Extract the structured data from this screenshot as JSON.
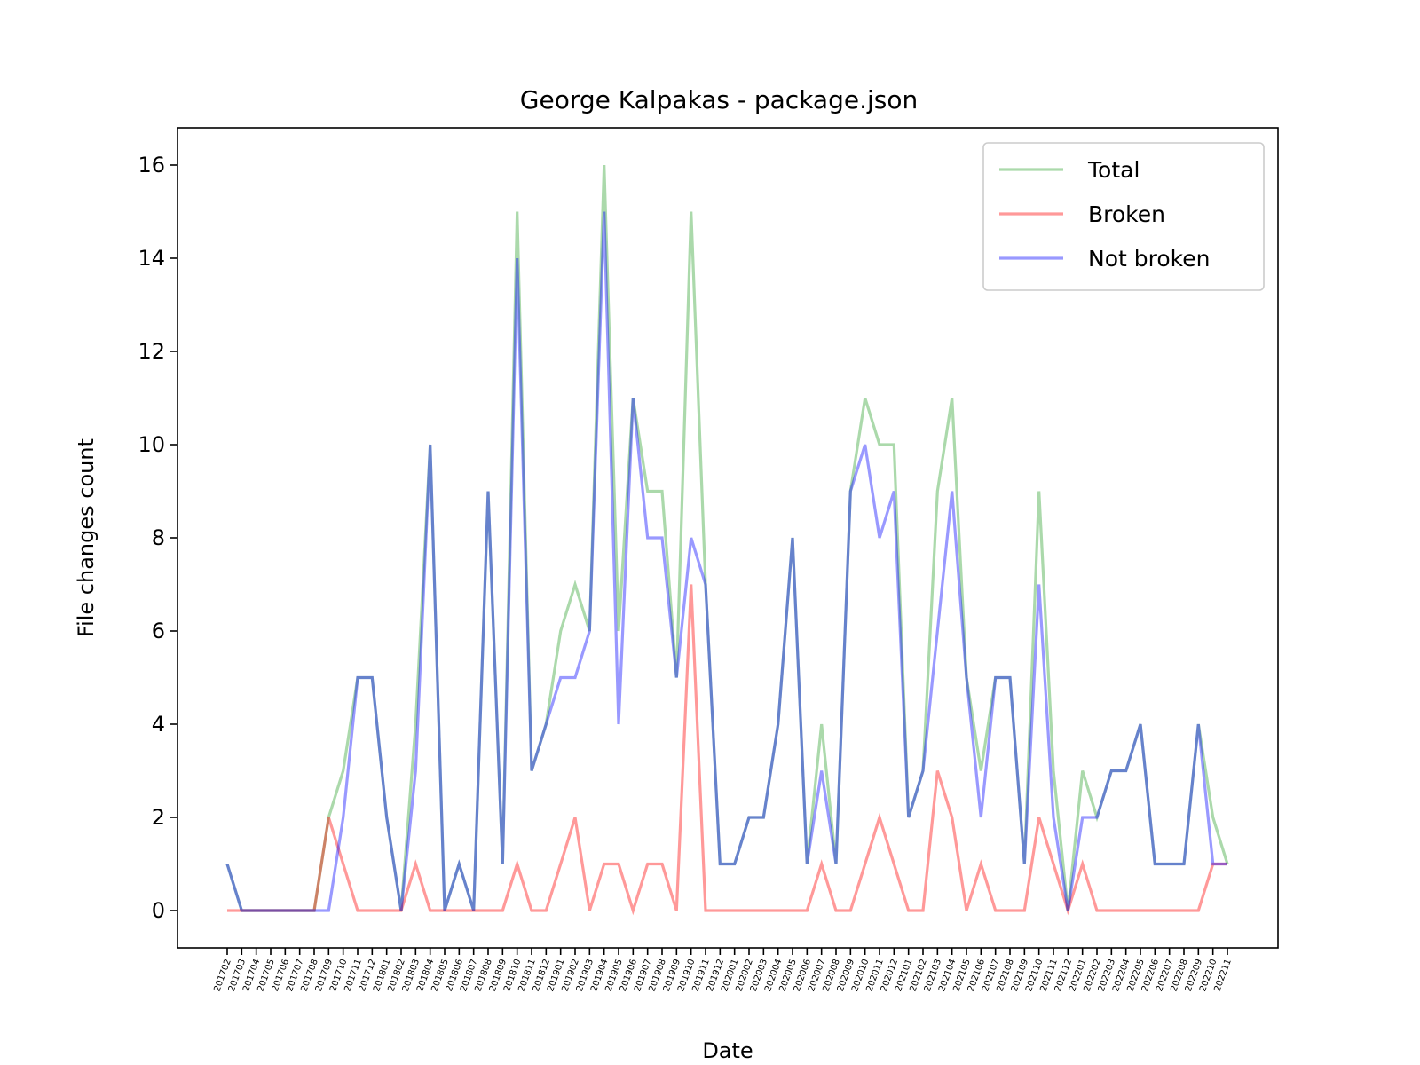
{
  "chart_data": {
    "type": "line",
    "title": "George Kalpakas - package.json",
    "xlabel": "Date",
    "ylabel": "File changes count",
    "ylim": [
      -0.8,
      16.8
    ],
    "yticks": [
      0,
      2,
      4,
      6,
      8,
      10,
      12,
      14,
      16
    ],
    "grid": false,
    "legend_position": "top-right",
    "categories": [
      "201702",
      "201703",
      "201704",
      "201705",
      "201706",
      "201707",
      "201708",
      "201709",
      "201710",
      "201711",
      "201712",
      "201801",
      "201802",
      "201803",
      "201804",
      "201805",
      "201806",
      "201807",
      "201808",
      "201809",
      "201810",
      "201811",
      "201812",
      "201901",
      "201902",
      "201903",
      "201904",
      "201905",
      "201906",
      "201907",
      "201908",
      "201909",
      "201910",
      "201911",
      "201912",
      "202001",
      "202002",
      "202003",
      "202004",
      "202005",
      "202006",
      "202007",
      "202008",
      "202009",
      "202010",
      "202011",
      "202012",
      "202101",
      "202102",
      "202103",
      "202104",
      "202105",
      "202106",
      "202107",
      "202108",
      "202109",
      "202110",
      "202111",
      "202112",
      "202201",
      "202202",
      "202203",
      "202204",
      "202205",
      "202206",
      "202207",
      "202208",
      "202209",
      "202210",
      "202211"
    ],
    "series": [
      {
        "name": "Total",
        "color": "#2ca02c",
        "values": [
          1,
          0,
          0,
          0,
          0,
          0,
          0,
          2,
          3,
          5,
          5,
          2,
          0,
          4,
          10,
          0,
          1,
          0,
          9,
          1,
          15,
          3,
          4,
          6,
          7,
          6,
          16,
          6,
          11,
          9,
          9,
          5,
          15,
          7,
          1,
          1,
          2,
          2,
          4,
          8,
          1,
          4,
          1,
          9,
          11,
          10,
          10,
          2,
          3,
          9,
          11,
          5,
          3,
          5,
          5,
          1,
          9,
          3,
          0,
          3,
          2,
          3,
          3,
          4,
          1,
          1,
          1,
          4,
          2,
          1
        ]
      },
      {
        "name": "Broken",
        "color": "#ff0000",
        "values": [
          0,
          0,
          0,
          0,
          0,
          0,
          0,
          2,
          1,
          0,
          0,
          0,
          0,
          1,
          0,
          0,
          0,
          0,
          0,
          0,
          1,
          0,
          0,
          1,
          2,
          0,
          1,
          1,
          0,
          1,
          1,
          0,
          7,
          0,
          0,
          0,
          0,
          0,
          0,
          0,
          0,
          1,
          0,
          0,
          1,
          2,
          1,
          0,
          0,
          3,
          2,
          0,
          1,
          0,
          0,
          0,
          2,
          1,
          0,
          1,
          0,
          0,
          0,
          0,
          0,
          0,
          0,
          0,
          1,
          1
        ]
      },
      {
        "name": "Not broken",
        "color": "#0000ff",
        "values": [
          1,
          0,
          0,
          0,
          0,
          0,
          0,
          0,
          2,
          5,
          5,
          2,
          0,
          3,
          10,
          0,
          1,
          0,
          9,
          1,
          14,
          3,
          4,
          5,
          5,
          6,
          15,
          4,
          11,
          8,
          8,
          5,
          8,
          7,
          1,
          1,
          2,
          2,
          4,
          8,
          1,
          3,
          1,
          9,
          10,
          8,
          9,
          2,
          3,
          6,
          9,
          5,
          2,
          5,
          5,
          1,
          7,
          2,
          0,
          2,
          2,
          3,
          3,
          4,
          1,
          1,
          1,
          4,
          1,
          1
        ]
      }
    ]
  }
}
